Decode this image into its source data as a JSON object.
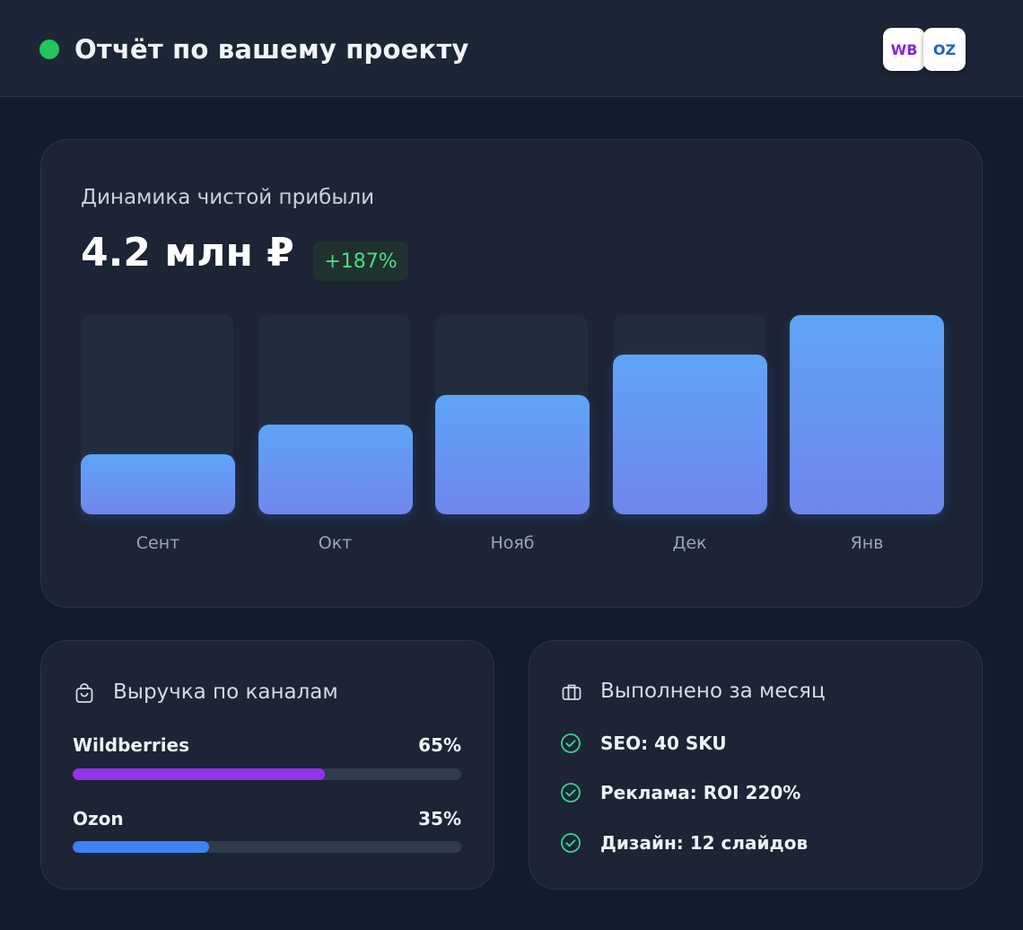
{
  "header": {
    "title": "Отчёт по вашему проекту",
    "status_color": "#22c55e",
    "marketplaces": [
      "WB",
      "OZ"
    ]
  },
  "profit": {
    "subtitle": "Динамика чистой прибыли",
    "total": "4.2 млн ₽",
    "change": "+187%"
  },
  "chart_data": {
    "type": "bar",
    "categories": [
      "Сент",
      "Окт",
      "Нояб",
      "Дек",
      "Янв"
    ],
    "values": [
      30,
      45,
      60,
      80,
      100
    ],
    "ylim": [
      0,
      100
    ],
    "grid": false,
    "title": "Динамика чистой прибыли",
    "bar_color": "#5ea4f7"
  },
  "channels": {
    "title": "Выручка по каналам",
    "icon": "shopping-bag-icon",
    "items": [
      {
        "name": "Wildberries",
        "pct_label": "65%",
        "pct": 65,
        "color": "#9333ea"
      },
      {
        "name": "Ozon",
        "pct_label": "35%",
        "pct": 35,
        "color": "#3b82f6"
      }
    ]
  },
  "done": {
    "title": "Выполнено за месяц",
    "icon": "briefcase-icon",
    "items": [
      "SEO: 40 SKU",
      "Реклама: ROI 220%",
      "Дизайн: 12 слайдов"
    ]
  }
}
